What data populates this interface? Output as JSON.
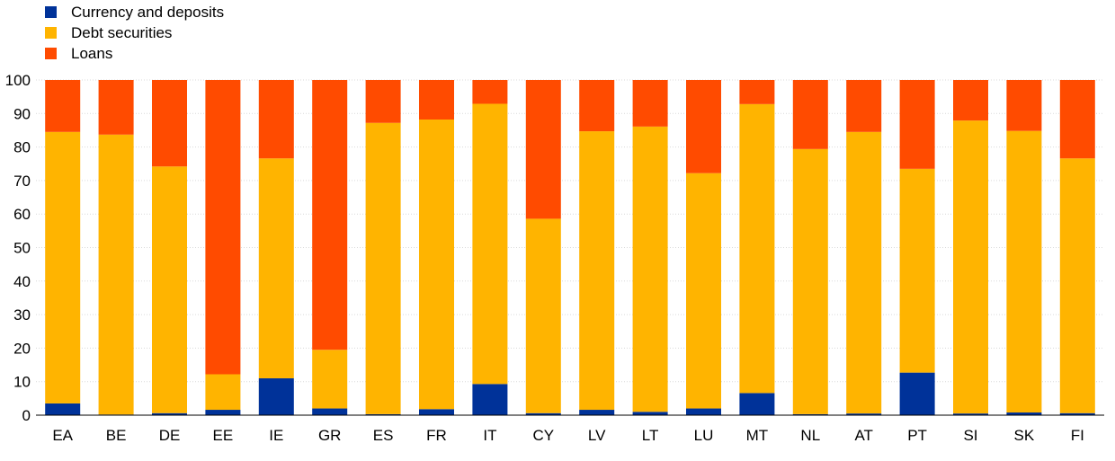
{
  "chart_data": {
    "type": "bar",
    "stacked": true,
    "categories": [
      "EA",
      "BE",
      "DE",
      "EE",
      "IE",
      "GR",
      "ES",
      "FR",
      "IT",
      "CY",
      "LV",
      "LT",
      "LU",
      "MT",
      "NL",
      "AT",
      "PT",
      "SI",
      "SK",
      "FI"
    ],
    "series": [
      {
        "name": "Currency and deposits",
        "color": "#003299",
        "values": [
          3.5,
          0.2,
          0.6,
          1.6,
          11.0,
          2.0,
          0.3,
          1.8,
          9.3,
          0.6,
          1.6,
          1.0,
          2.0,
          6.6,
          0.3,
          0.5,
          12.7,
          0.5,
          0.8,
          0.6
        ]
      },
      {
        "name": "Debt securities",
        "color": "#FFB400",
        "values": [
          81.0,
          83.5,
          73.6,
          10.6,
          65.6,
          17.5,
          86.9,
          86.4,
          83.6,
          58.0,
          83.1,
          85.1,
          70.2,
          86.2,
          79.1,
          84.0,
          60.8,
          87.4,
          84.0,
          76.0
        ]
      },
      {
        "name": "Loans",
        "color": "#FF4B00",
        "values": [
          15.5,
          16.3,
          25.8,
          87.8,
          23.4,
          80.5,
          12.8,
          11.8,
          7.1,
          41.4,
          15.3,
          13.9,
          27.8,
          7.2,
          20.6,
          15.5,
          26.5,
          12.1,
          15.2,
          23.4
        ]
      }
    ],
    "ylim": [
      0,
      100
    ],
    "yticks": [
      0,
      10,
      20,
      30,
      40,
      50,
      60,
      70,
      80,
      90,
      100
    ],
    "grid": true,
    "legend_position": "top-left",
    "title": "",
    "xlabel": "",
    "ylabel": ""
  },
  "legend": {
    "items": [
      {
        "label": "Currency and deposits",
        "color": "#003299"
      },
      {
        "label": "Debt securities",
        "color": "#FFB400"
      },
      {
        "label": "Loans",
        "color": "#FF4B00"
      }
    ]
  }
}
